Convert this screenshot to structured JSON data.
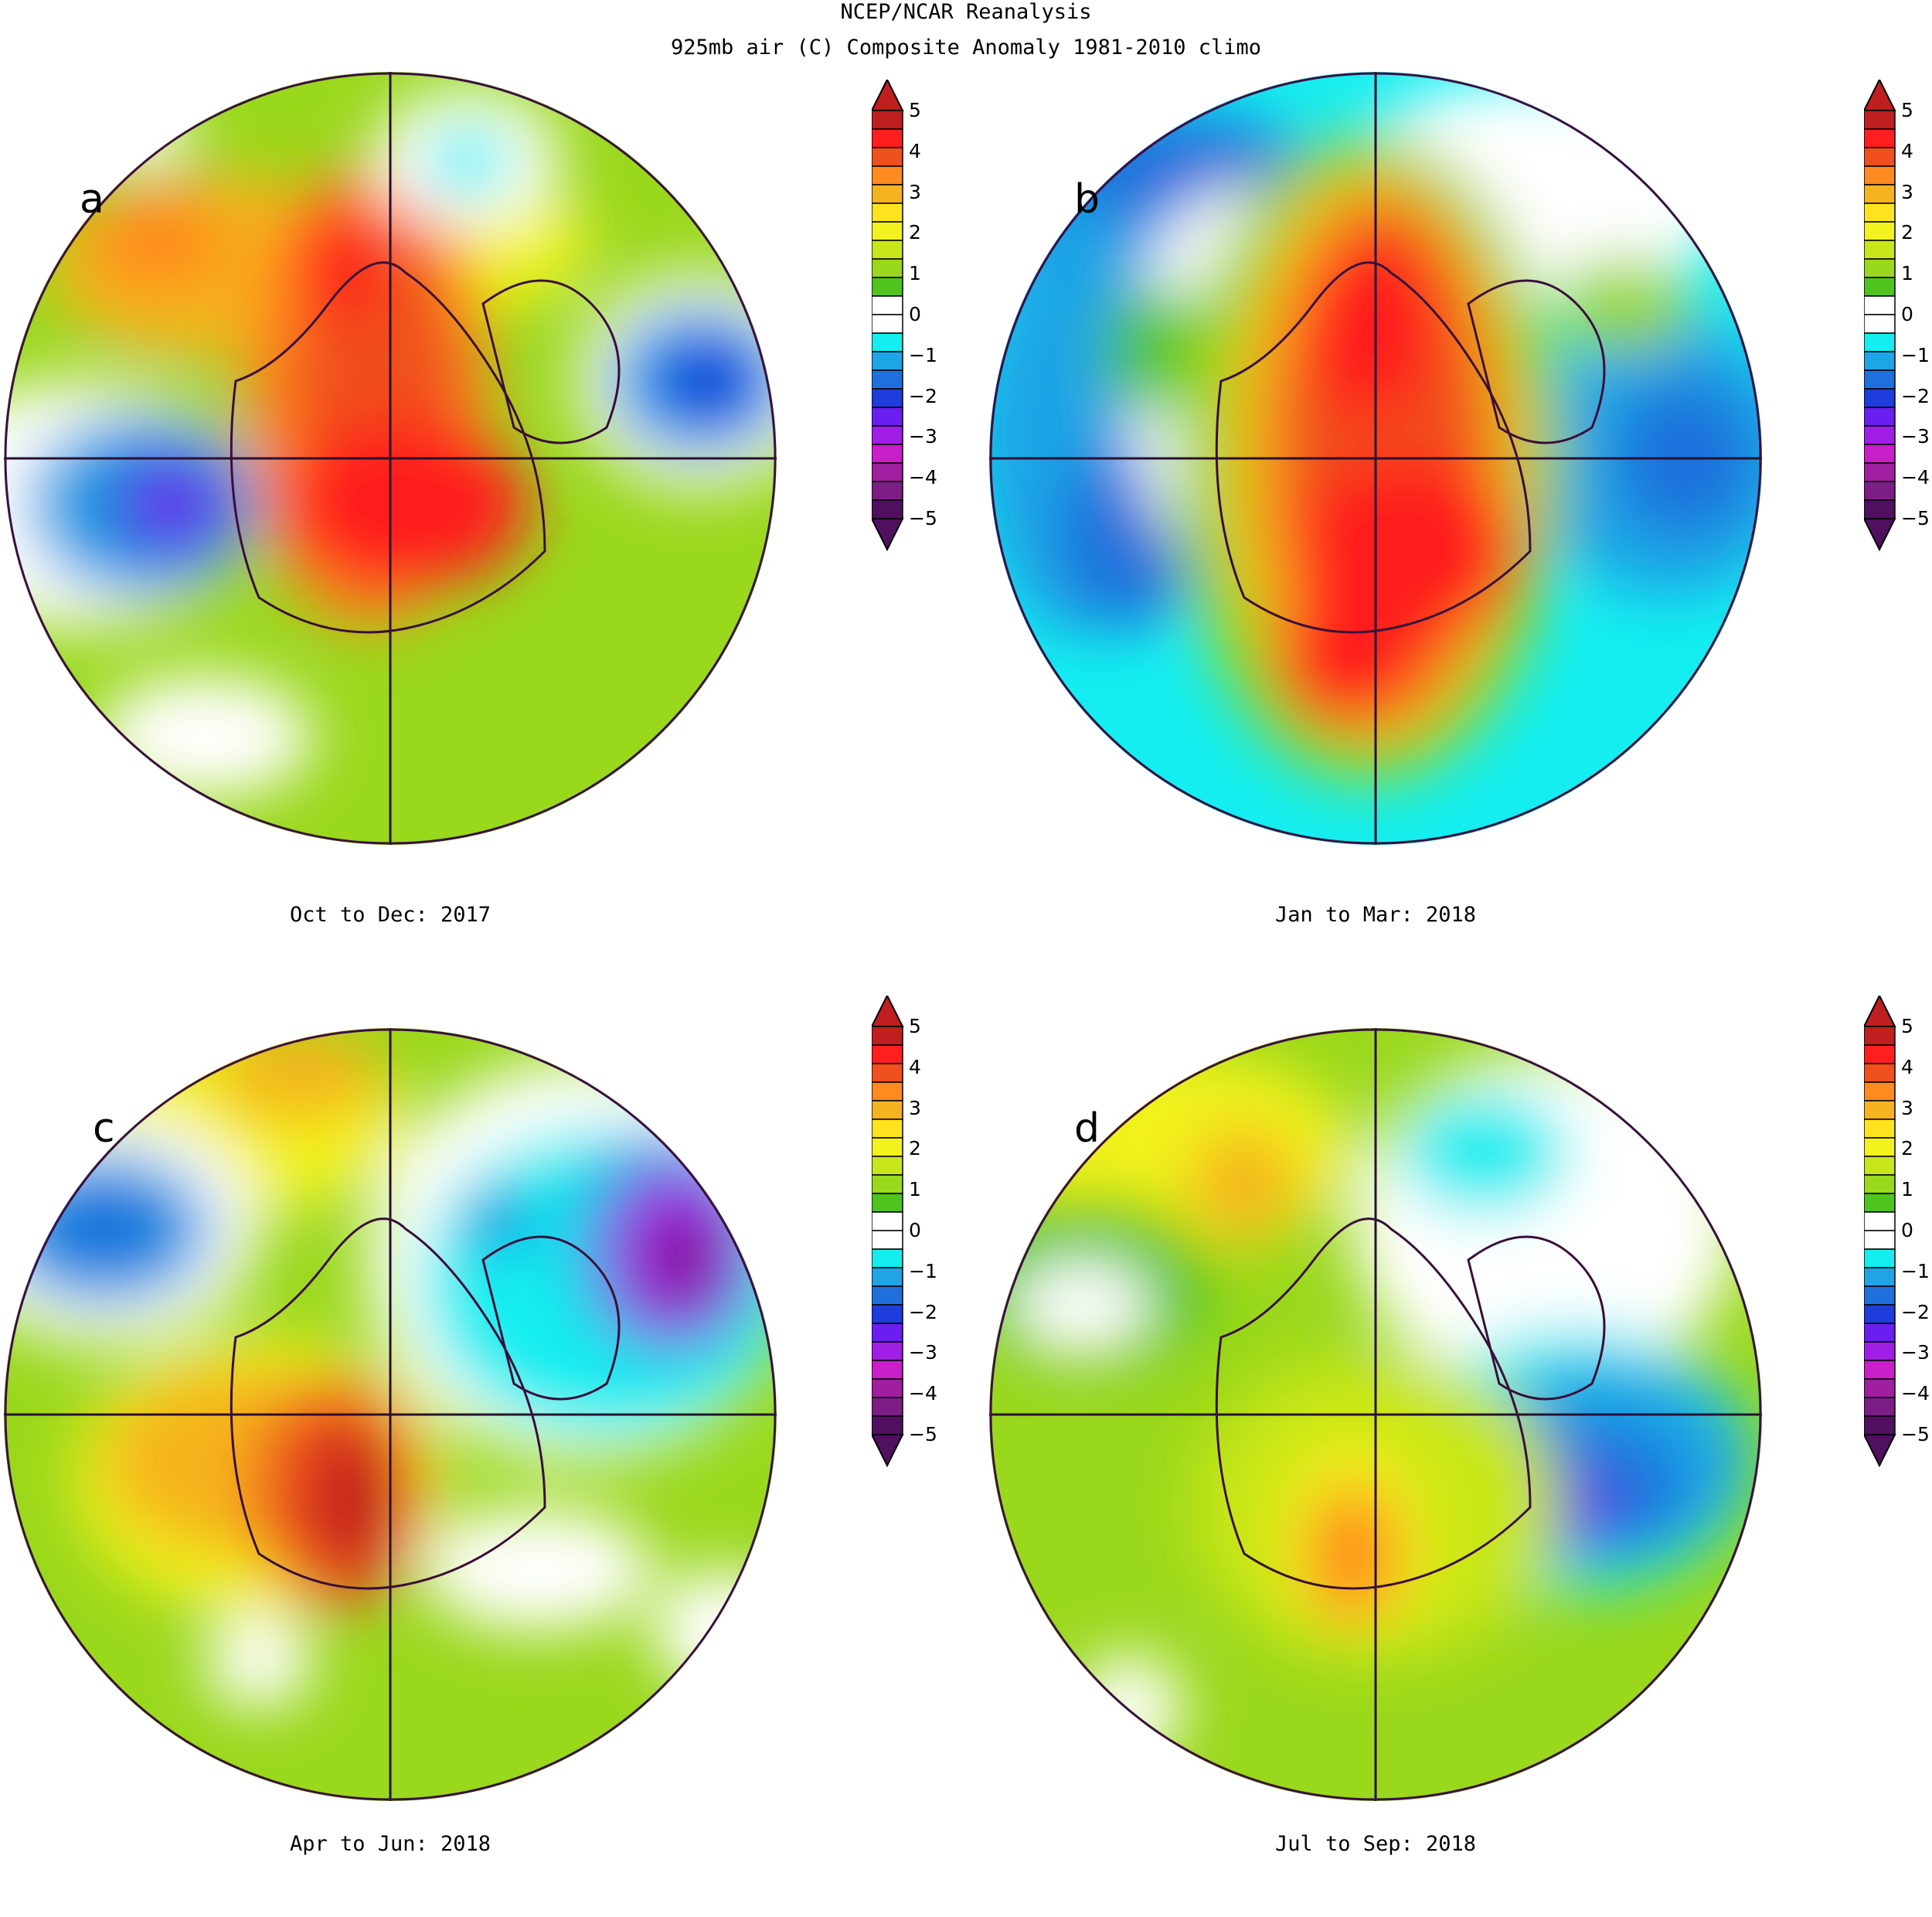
{
  "header": {
    "line1": "NCEP/NCAR Reanalysis",
    "line2": "925mb air (C) Composite Anomaly 1981-2010 climo"
  },
  "colorbar": {
    "ticks": [
      "5",
      "4",
      "3",
      "2",
      "1",
      "0",
      "−1",
      "−2",
      "−3",
      "−4",
      "−5"
    ],
    "colors": [
      "#bf1f1f",
      "#ff1f1f",
      "#f0501e",
      "#ff8a1f",
      "#f5b41f",
      "#ffe31f",
      "#f2f21f",
      "#c8e619",
      "#9ad81c",
      "#4ec41c",
      "#ffffff",
      "#ffffff",
      "#14eef0",
      "#1fa4e6",
      "#1f6fdc",
      "#1f3cdc",
      "#6a1ff0",
      "#a01ee6",
      "#c81fc8",
      "#a01ea0",
      "#7d1e87",
      "#501060"
    ]
  },
  "panels": [
    {
      "label": "a",
      "caption": "Oct to Dec: 2017"
    },
    {
      "label": "b",
      "caption": "Jan to Mar: 2018"
    },
    {
      "label": "c",
      "caption": "Apr to Jun: 2018"
    },
    {
      "label": "d",
      "caption": "Jul to Sep: 2018"
    }
  ]
}
